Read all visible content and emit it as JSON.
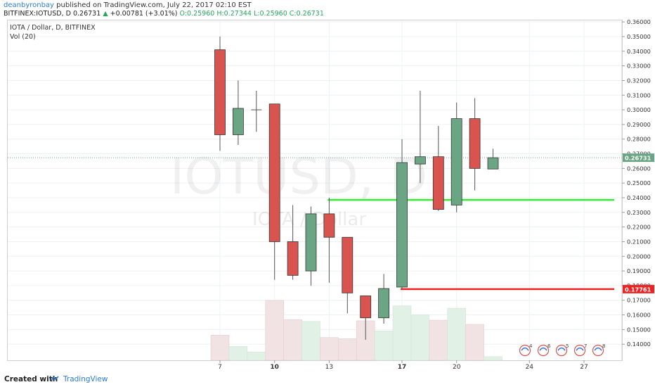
{
  "header": {
    "author": "deanbyronbay",
    "published": "published on TradingView.com, July 22, 2017 02:10 EST",
    "symbol_line": "BITFINEX:IOTUSD, D",
    "last": "0.26731",
    "change": "+0.00781 (+3.01%)",
    "ohlc": "O:0.25960 H:0.27344 L:0.25960 C:0.26731"
  },
  "legend": {
    "series": "IOTA / Dollar, D, BITFINEX",
    "volume": "Vol (20)"
  },
  "watermark": {
    "symbol": "IOTUSD, D",
    "name": "IOTA / Dollar"
  },
  "footer": {
    "created": "Created with",
    "brand": "TradingView"
  },
  "colors": {
    "up": "#6aa584",
    "down": "#d9534f",
    "vol_up": "#e2f1e5",
    "vol_down": "#f1e3e3",
    "green_line": "#33ee33",
    "red_line": "#ee2222",
    "accent": "#2a7dd4"
  },
  "chart_data": {
    "type": "candlestick",
    "x_tick_labels": [
      "7",
      "10",
      "13",
      "17",
      "20",
      "24",
      "27"
    ],
    "y_tick_labels": [
      "0.36000",
      "0.35000",
      "0.34000",
      "0.33000",
      "0.32000",
      "0.31000",
      "0.30000",
      "0.29000",
      "0.28000",
      "0.27000",
      "0.26000",
      "0.25000",
      "0.24000",
      "0.23000",
      "0.22000",
      "0.21000",
      "0.20000",
      "0.19000",
      "0.18000",
      "0.17000",
      "0.16000",
      "0.15000",
      "0.14000"
    ],
    "ylim": [
      0.13,
      0.362
    ],
    "candles": [
      {
        "o": 0.341,
        "h": 0.35,
        "l": 0.272,
        "c": 0.283
      },
      {
        "o": 0.283,
        "h": 0.32,
        "l": 0.276,
        "c": 0.301
      },
      {
        "o": 0.3,
        "h": 0.313,
        "l": 0.285,
        "c": 0.3
      },
      {
        "o": 0.304,
        "h": 0.304,
        "l": 0.184,
        "c": 0.21
      },
      {
        "o": 0.21,
        "h": 0.235,
        "l": 0.184,
        "c": 0.187
      },
      {
        "o": 0.19,
        "h": 0.234,
        "l": 0.18,
        "c": 0.229
      },
      {
        "o": 0.229,
        "h": 0.24,
        "l": 0.182,
        "c": 0.213
      },
      {
        "o": 0.213,
        "h": 0.213,
        "l": 0.161,
        "c": 0.175
      },
      {
        "o": 0.173,
        "h": 0.173,
        "l": 0.143,
        "c": 0.158
      },
      {
        "o": 0.158,
        "h": 0.188,
        "l": 0.154,
        "c": 0.178
      },
      {
        "o": 0.179,
        "h": 0.28,
        "l": 0.177,
        "c": 0.264
      },
      {
        "o": 0.263,
        "h": 0.313,
        "l": 0.25,
        "c": 0.268
      },
      {
        "o": 0.268,
        "h": 0.289,
        "l": 0.231,
        "c": 0.232
      },
      {
        "o": 0.235,
        "h": 0.305,
        "l": 0.23,
        "c": 0.294
      },
      {
        "o": 0.294,
        "h": 0.308,
        "l": 0.245,
        "c": 0.26
      },
      {
        "o": 0.2596,
        "h": 0.27344,
        "l": 0.2596,
        "c": 0.26731
      }
    ],
    "volume": {
      "up": [
        false,
        true,
        true,
        false,
        false,
        true,
        false,
        false,
        false,
        true,
        true,
        true,
        false,
        true,
        false,
        true
      ],
      "relative": [
        0.42,
        0.23,
        0.14,
        1.0,
        0.68,
        0.65,
        0.38,
        0.36,
        0.66,
        0.49,
        0.91,
        0.76,
        0.67,
        0.87,
        0.6,
        0.06
      ]
    },
    "horizontal_levels": [
      {
        "price": 0.2385,
        "color": "green",
        "from_candle": 6
      },
      {
        "price": 0.17761,
        "color": "red",
        "from_candle": 10,
        "label": "0.17761"
      }
    ],
    "last_price_label": "0.26731",
    "event_badges": [
      "4",
      "6",
      "5",
      "7",
      "8"
    ]
  }
}
